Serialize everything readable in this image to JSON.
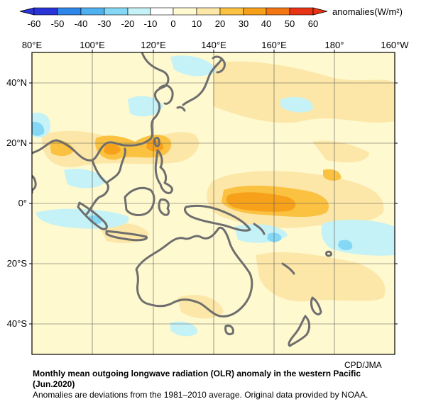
{
  "legend": {
    "levels": [
      -60,
      -50,
      -40,
      -30,
      -20,
      -10,
      0,
      10,
      20,
      30,
      40,
      50,
      60
    ],
    "colors": [
      "#2a34d6",
      "#2e86e8",
      "#4fb0f0",
      "#84d8f5",
      "#c4f2f6",
      "#ffffff",
      "#fff9cf",
      "#fce7a8",
      "#fbc140",
      "#f7a11b",
      "#f27614",
      "#e83414"
    ],
    "units_label": "anomalies(W/m²)"
  },
  "map": {
    "lon_labels": [
      "80°E",
      "100°E",
      "120°E",
      "140°E",
      "160°E",
      "180°",
      "160°W"
    ],
    "lat_labels": [
      "40°N",
      "20°N",
      "0°",
      "20°S",
      "40°S"
    ],
    "lon_range": [
      80,
      205
    ],
    "lat_range": [
      -50,
      50
    ],
    "grid_step_lon": 20,
    "grid_step_lat": 20,
    "coast_color": "#6e6e6e",
    "grid_color": "#555555"
  },
  "credit": "CPD/JMA",
  "caption": {
    "title_line1": "Monthly mean outgoing longwave radiation (OLR) anomaly in the western Pacific",
    "title_line2": "(Jun.2020)",
    "note": "Anomalies are deviations from the 1981–2010 average. Original data provided by NOAA."
  }
}
